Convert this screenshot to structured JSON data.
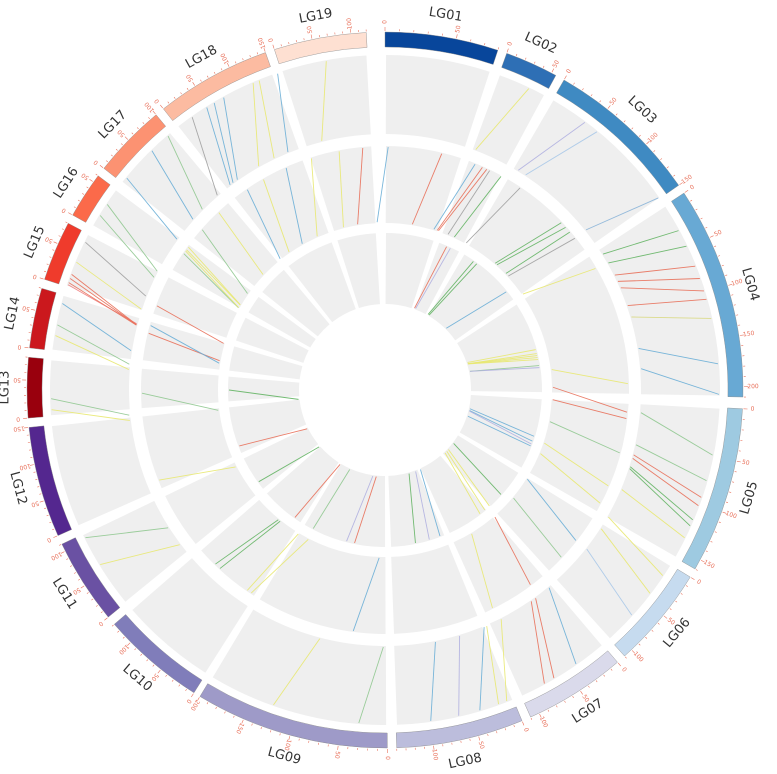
{
  "tick_color": "#e8705a",
  "track_bg_color": "#efefef",
  "chromosomes": [
    {
      "name": "LG01",
      "length": 80,
      "color": "#08469b",
      "start": 0.0,
      "end": 24.5
    },
    {
      "name": "LG02",
      "length": 55,
      "color": "#2e6fb5",
      "start": 26.5,
      "end": 38.0
    },
    {
      "name": "LG03",
      "length": 150,
      "color": "#3f8ac2",
      "start": 40.0,
      "end": 73.5
    },
    {
      "name": "LG04",
      "length": 210,
      "color": "#68a9d4",
      "start": 75.5,
      "end": 121.5
    },
    {
      "name": "LG05",
      "length": 160,
      "color": "#9ecae1",
      "start": 124.0,
      "end": 160.0
    },
    {
      "name": "LG06",
      "length": 110,
      "color": "#c6dbef",
      "start": 162.0,
      "end": 184.0
    },
    {
      "name": "LG07",
      "length": 110,
      "color": "#dadaeb",
      "start": 186.0,
      "end": 208.0
    },
    {
      "name": "LG08",
      "length": 140,
      "color": "#bcbddc",
      "start": 210.0,
      "end": 237.5
    },
    {
      "name": "LG09",
      "length": 200,
      "color": "#9e9ac8",
      "start": 239.5,
      "end": 281.5
    },
    {
      "name": "LG10",
      "length": 130,
      "color": "#807dba",
      "start": 283.0,
      "end": 305.5
    },
    {
      "name": "LG11",
      "length": 110,
      "color": "#6a51a3",
      "start": 307.5,
      "end": 326.0
    },
    {
      "name": "LG12",
      "length": 150,
      "color": "#54278f",
      "start": 328.0,
      "end": 352.0
    },
    {
      "name": "LG13",
      "length": 80,
      "color": "#99000d",
      "start": 354.0,
      "end": 367.0
    },
    {
      "name": "LG14",
      "length": 80,
      "color": "#cb181d",
      "start": 369.0,
      "end": 382.0
    },
    {
      "name": "LG15",
      "length": 80,
      "color": "#ef3b2c",
      "start": 384.0,
      "end": 397.0
    },
    {
      "name": "LG16",
      "length": 60,
      "color": "#fb6a4a",
      "start": 399.0,
      "end": 409.0
    },
    {
      "name": "LG17",
      "length": 100,
      "color": "#fc9272",
      "start": 411.0,
      "end": 427.0
    },
    {
      "name": "LG18",
      "length": 150,
      "color": "#fcbba1",
      "start": 429.0,
      "end": 454.0
    },
    {
      "name": "LG19",
      "length": 120,
      "color": "#fee0d2",
      "start": 456.0,
      "end": 476.0
    }
  ],
  "tracks": [
    {
      "name": "outer",
      "lines": [
        {
          "pos": 73.2,
          "color": "#8ab4d8"
        },
        {
          "pos": 103.5,
          "color": "#d8d880"
        },
        {
          "pos": 114.0,
          "color": "#6aaed6"
        },
        {
          "pos": 121.0,
          "color": "#6aaed6"
        },
        {
          "pos": 135.0,
          "color": "#90c890"
        },
        {
          "pos": 141.0,
          "color": "#90c890"
        },
        {
          "pos": 176.5,
          "color": "#a8c8e8"
        },
        {
          "pos": 193.5,
          "color": "#6aaed6"
        },
        {
          "pos": 211.5,
          "color": "#e8e870"
        },
        {
          "pos": 218.0,
          "color": "#6aaed6"
        },
        {
          "pos": 229.5,
          "color": "#6aaed6"
        },
        {
          "pos": 246.0,
          "color": "#90c890"
        },
        {
          "pos": 266.0,
          "color": "#e8e870"
        },
        {
          "pos": 318.0,
          "color": "#e8e870"
        },
        {
          "pos": 325.0,
          "color": "#90c890"
        },
        {
          "pos": 355.5,
          "color": "#e8e870"
        },
        {
          "pos": 358.0,
          "color": "#90c890"
        },
        {
          "pos": 372.5,
          "color": "#e8e870"
        },
        {
          "pos": 375.0,
          "color": "#90c890"
        },
        {
          "pos": 380.0,
          "color": "#6aaed6"
        },
        {
          "pos": 384.5,
          "color": "#f08080"
        },
        {
          "pos": 390.0,
          "color": "#e8e870"
        },
        {
          "pos": 395.0,
          "color": "#a0a0a0"
        },
        {
          "pos": 402.0,
          "color": "#90c890"
        },
        {
          "pos": 405.0,
          "color": "#90c890"
        },
        {
          "pos": 412.5,
          "color": "#6aaed6"
        },
        {
          "pos": 421.0,
          "color": "#6aaed6"
        },
        {
          "pos": 437.0,
          "color": "#6aaed6"
        },
        {
          "pos": 439.0,
          "color": "#6aaed6"
        },
        {
          "pos": 441.5,
          "color": "#6aaed6"
        },
        {
          "pos": 455.0,
          "color": "#6aaed6"
        },
        {
          "pos": 466.5,
          "color": "#e8e870"
        },
        {
          "pos": 34.0,
          "color": "#e8e870"
        },
        {
          "pos": 49.0,
          "color": "#b0b0e0"
        },
        {
          "pos": 52.5,
          "color": "#a8c8e8"
        },
        {
          "pos": 82.0,
          "color": "#64b464"
        },
        {
          "pos": 86.0,
          "color": "#64b464"
        },
        {
          "pos": 91.0,
          "color": "#e8705a"
        },
        {
          "pos": 94.0,
          "color": "#e8705a"
        },
        {
          "pos": 97.0,
          "color": "#e8705a"
        },
        {
          "pos": 99.0,
          "color": "#e8705a"
        },
        {
          "pos": 145.0,
          "color": "#e8705a"
        },
        {
          "pos": 147.0,
          "color": "#e8705a"
        },
        {
          "pos": 150.5,
          "color": "#64b464"
        },
        {
          "pos": 152.0,
          "color": "#64b464"
        },
        {
          "pos": 155.0,
          "color": "#e8e870"
        },
        {
          "pos": 165.0,
          "color": "#e8e870"
        },
        {
          "pos": 170.0,
          "color": "#e8e870"
        },
        {
          "pos": 199.5,
          "color": "#e8705a"
        },
        {
          "pos": 202.0,
          "color": "#e8705a"
        },
        {
          "pos": 213.5,
          "color": "#e8e870"
        },
        {
          "pos": 223.0,
          "color": "#b0b0e0"
        },
        {
          "pos": 426.0,
          "color": "#90c890"
        },
        {
          "pos": 433.0,
          "color": "#a0a0a0"
        },
        {
          "pos": 449.0,
          "color": "#e8e870"
        },
        {
          "pos": 450.5,
          "color": "#e8e870"
        },
        {
          "pos": 385.0,
          "color": "#e8705a"
        },
        {
          "pos": 386.0,
          "color": "#e8705a"
        },
        {
          "pos": 387.0,
          "color": "#e8705a"
        }
      ]
    },
    {
      "name": "middle",
      "lines": [
        {
          "pos": 1.0,
          "color": "#6aaed6"
        },
        {
          "pos": 18.0,
          "color": "#e8705a"
        },
        {
          "pos": 29.0,
          "color": "#6aaed6"
        },
        {
          "pos": 31.5,
          "color": "#e8705a"
        },
        {
          "pos": 33.0,
          "color": "#e8705a"
        },
        {
          "pos": 34.0,
          "color": "#a0a0a0"
        },
        {
          "pos": 38.0,
          "color": "#64b464"
        },
        {
          "pos": 45.0,
          "color": "#a0a0a0"
        },
        {
          "pos": 62.0,
          "color": "#64b464"
        },
        {
          "pos": 64.0,
          "color": "#64b464"
        },
        {
          "pos": 66.0,
          "color": "#64b464"
        },
        {
          "pos": 68.5,
          "color": "#a0a0a0"
        },
        {
          "pos": 80.0,
          "color": "#e8e870"
        },
        {
          "pos": 118.0,
          "color": "#e8e870"
        },
        {
          "pos": 127.0,
          "color": "#e8705a"
        },
        {
          "pos": 129.0,
          "color": "#e8705a"
        },
        {
          "pos": 140.0,
          "color": "#90c890"
        },
        {
          "pos": 151.0,
          "color": "#e8e870"
        },
        {
          "pos": 157.0,
          "color": "#e8e870"
        },
        {
          "pos": 171.0,
          "color": "#6aaed6"
        },
        {
          "pos": 178.0,
          "color": "#90c890"
        },
        {
          "pos": 191.0,
          "color": "#e8705a"
        },
        {
          "pos": 205.0,
          "color": "#e8e870"
        },
        {
          "pos": 250.0,
          "color": "#6aaed6"
        },
        {
          "pos": 284.5,
          "color": "#e8e870"
        },
        {
          "pos": 286.0,
          "color": "#e8e870"
        },
        {
          "pos": 297.0,
          "color": "#64b464"
        },
        {
          "pos": 299.0,
          "color": "#64b464"
        },
        {
          "pos": 331.0,
          "color": "#e8e870"
        },
        {
          "pos": 359.0,
          "color": "#90c890"
        },
        {
          "pos": 378.0,
          "color": "#e8705a"
        },
        {
          "pos": 387.0,
          "color": "#e8705a"
        },
        {
          "pos": 407.0,
          "color": "#e8e870"
        },
        {
          "pos": 408.0,
          "color": "#e8e870"
        },
        {
          "pos": 415.0,
          "color": "#90c890"
        },
        {
          "pos": 422.5,
          "color": "#e8e870"
        },
        {
          "pos": 434.0,
          "color": "#6aaed6"
        },
        {
          "pos": 440.0,
          "color": "#e8e870"
        },
        {
          "pos": 448.0,
          "color": "#6aaed6"
        },
        {
          "pos": 456.5,
          "color": "#e8e870"
        },
        {
          "pos": 465.5,
          "color": "#e8e870"
        },
        {
          "pos": 473.0,
          "color": "#e8705a"
        },
        {
          "pos": 405.5,
          "color": "#90c890"
        },
        {
          "pos": 406.5,
          "color": "#e8e870"
        },
        {
          "pos": 380.5,
          "color": "#6aaed6"
        }
      ]
    },
    {
      "name": "inner",
      "lines": [
        {
          "pos": 31.0,
          "color": "#e8705a"
        },
        {
          "pos": 33.0,
          "color": "#b0b0e0"
        },
        {
          "pos": 46.0,
          "color": "#64b464"
        },
        {
          "pos": 48.0,
          "color": "#64b464"
        },
        {
          "pos": 68.0,
          "color": "#6aaed6"
        },
        {
          "pos": 100.0,
          "color": "#e8e870"
        },
        {
          "pos": 102.0,
          "color": "#e8e870"
        },
        {
          "pos": 103.0,
          "color": "#e8e870"
        },
        {
          "pos": 104.0,
          "color": "#e8e870"
        },
        {
          "pos": 105.0,
          "color": "#e8e870"
        },
        {
          "pos": 108.0,
          "color": "#90c890"
        },
        {
          "pos": 109.0,
          "color": "#b0b0e0"
        },
        {
          "pos": 143.0,
          "color": "#6aaed6"
        },
        {
          "pos": 145.5,
          "color": "#6aaed6"
        },
        {
          "pos": 147.0,
          "color": "#b0b0e0"
        },
        {
          "pos": 148.0,
          "color": "#6aaed6"
        },
        {
          "pos": 176.0,
          "color": "#64b464"
        },
        {
          "pos": 184.0,
          "color": "#e8e870"
        },
        {
          "pos": 187.0,
          "color": "#e8e870"
        },
        {
          "pos": 190.0,
          "color": "#e8e870"
        },
        {
          "pos": 212.5,
          "color": "#6aaed6"
        },
        {
          "pos": 218.0,
          "color": "#b0b0e0"
        },
        {
          "pos": 225.0,
          "color": "#64b464"
        },
        {
          "pos": 255.0,
          "color": "#e8705a"
        },
        {
          "pos": 259.0,
          "color": "#b0b0e0"
        },
        {
          "pos": 276.5,
          "color": "#90c890"
        },
        {
          "pos": 287.0,
          "color": "#e8705a"
        },
        {
          "pos": 312.0,
          "color": "#64b464"
        },
        {
          "pos": 332.0,
          "color": "#e8705a"
        },
        {
          "pos": 360.0,
          "color": "#64b464"
        }
      ]
    }
  ]
}
